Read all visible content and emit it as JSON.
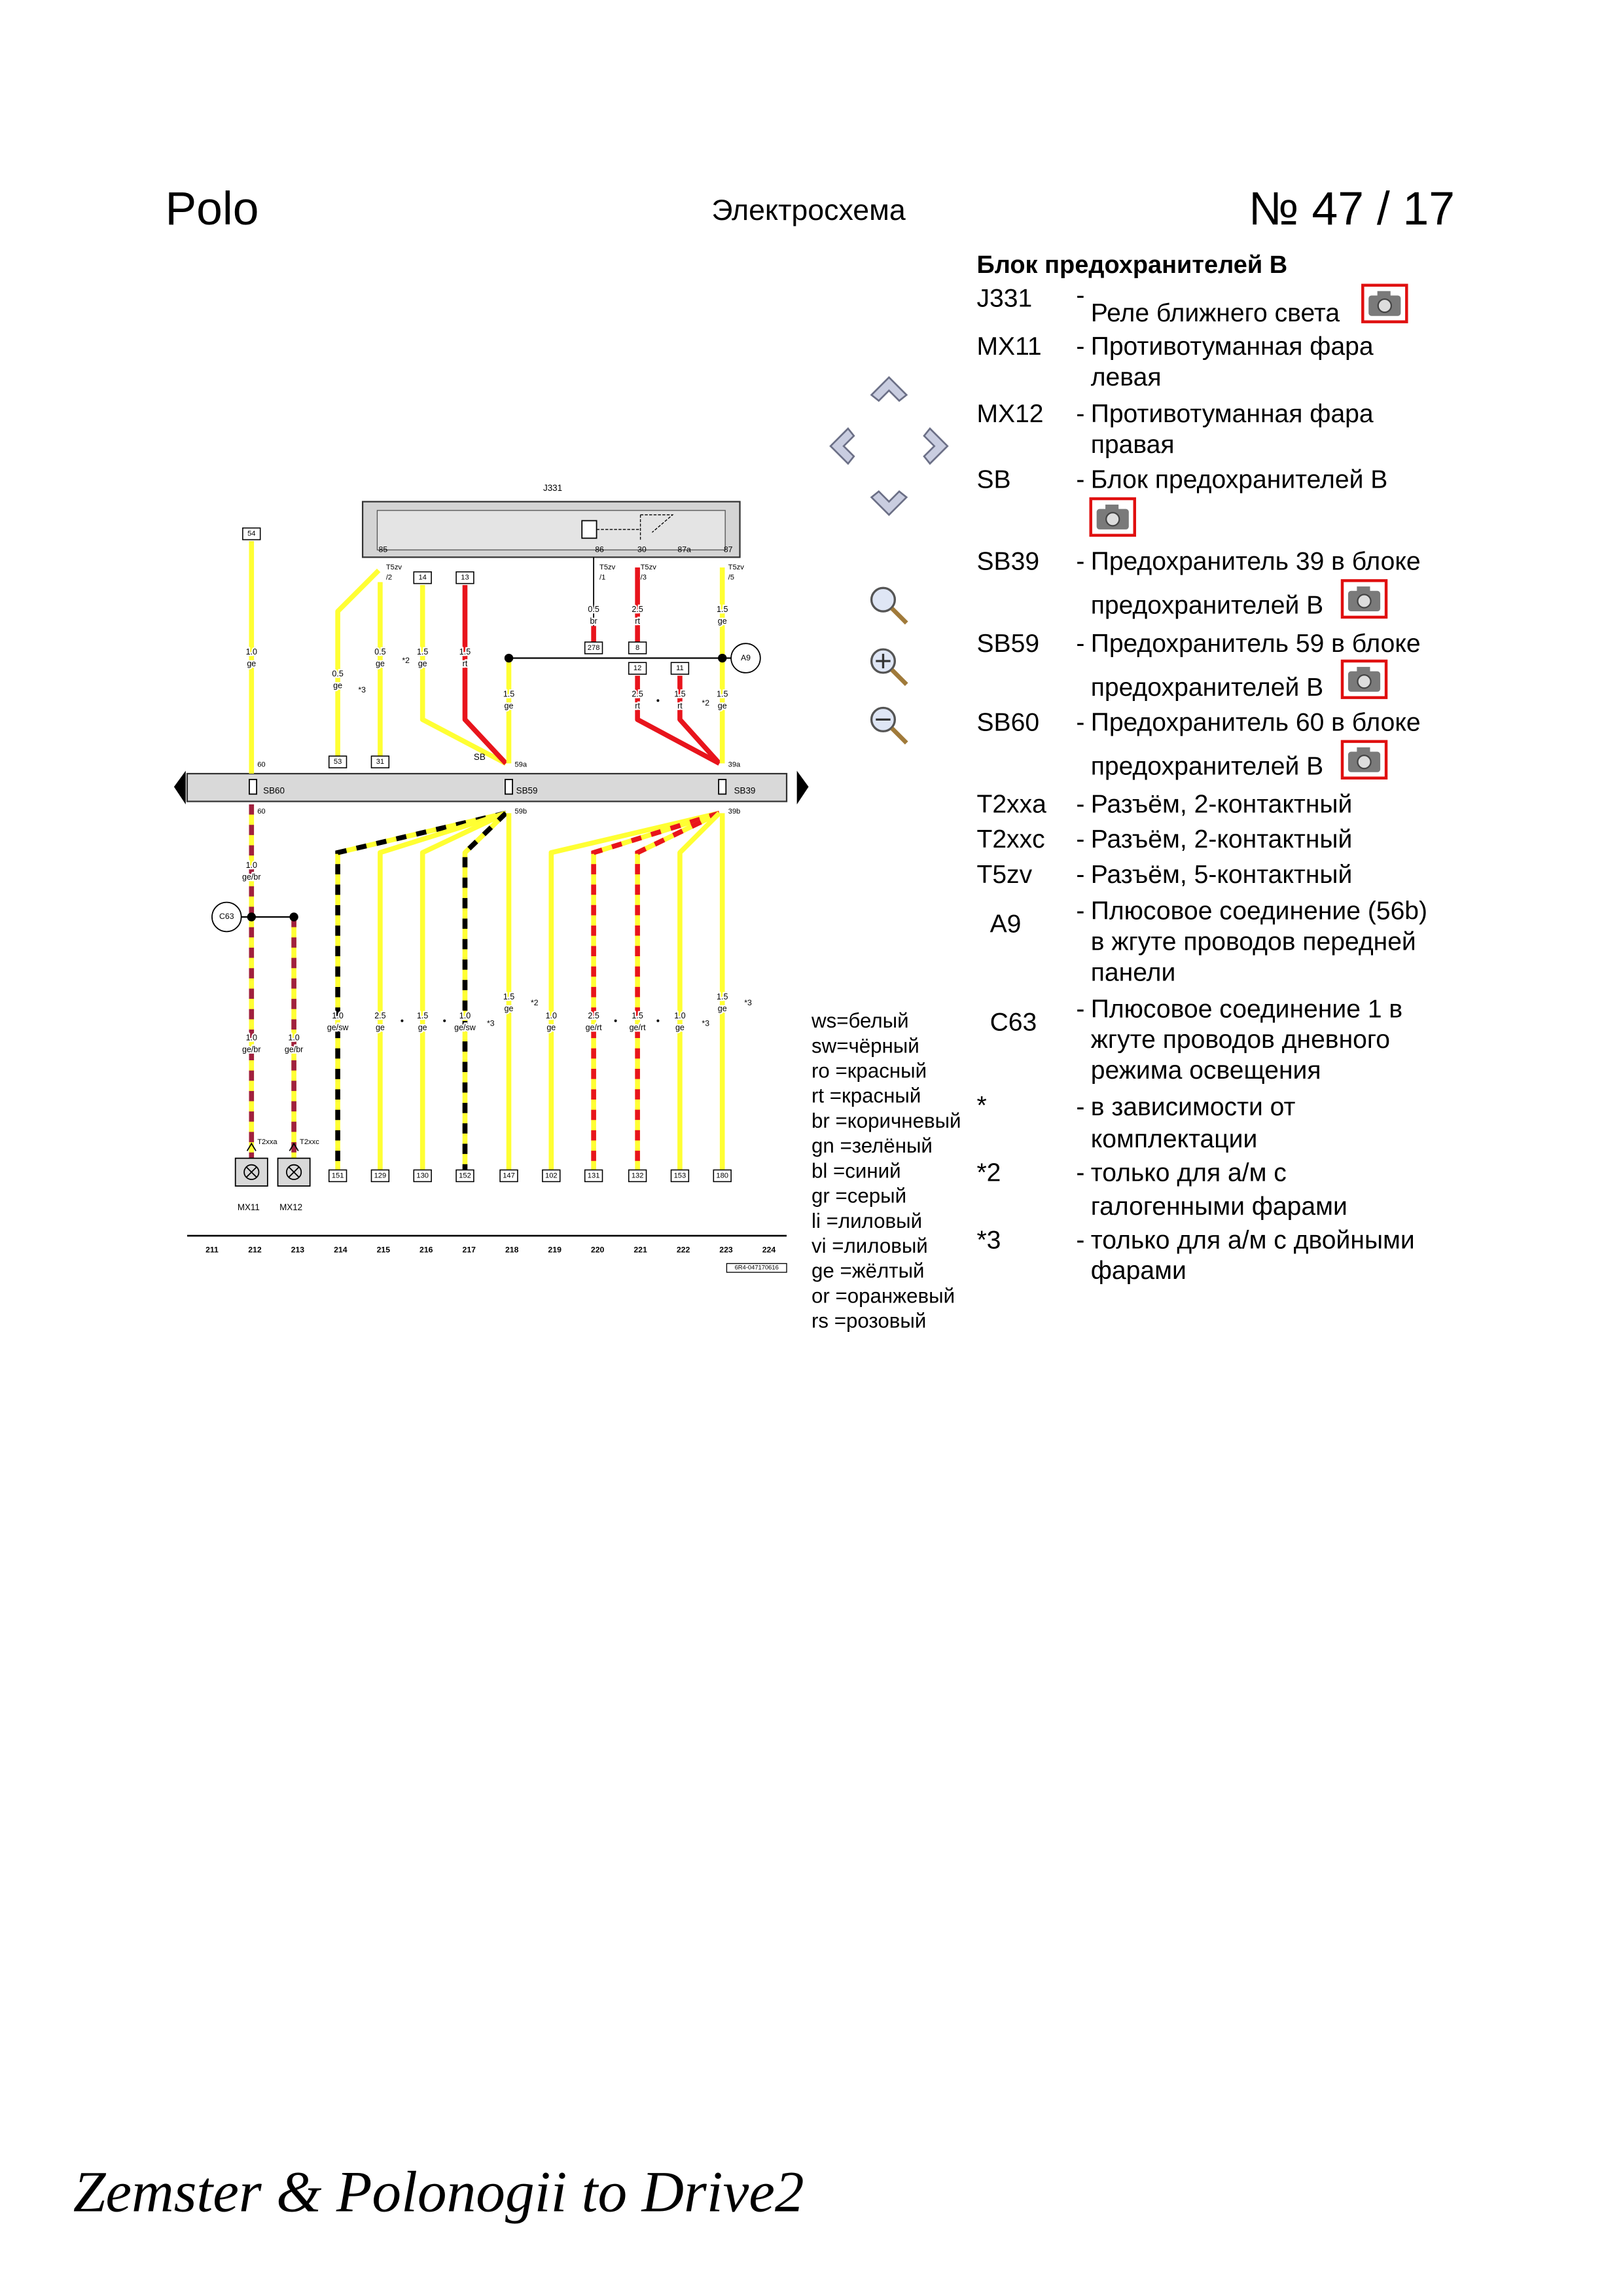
{
  "header": {
    "model": "Polo",
    "title": "Электросхема",
    "number": "№  47 / 17"
  },
  "legend": {
    "title": "Блок предохранителей B",
    "separator": "-",
    "items": [
      {
        "code": "J331",
        "lines": [
          "Реле ближнего света"
        ]
      },
      {
        "code": "MX11",
        "lines": [
          "Противотуманная фара",
          "левая"
        ]
      },
      {
        "code": "MX12",
        "lines": [
          "Противотуманная фара",
          "правая"
        ]
      },
      {
        "code": "SB",
        "lines": [
          "Блок предохранителей B"
        ]
      },
      {
        "code": "SB39",
        "lines": [
          "Предохранитель 39 в блоке",
          "предохранителей B"
        ]
      },
      {
        "code": "SB59",
        "lines": [
          "Предохранитель 59 в блоке",
          "предохранителей B"
        ]
      },
      {
        "code": "SB60",
        "lines": [
          "Предохранитель 60 в блоке",
          "предохранителей B"
        ]
      },
      {
        "code": "T2xxa",
        "lines": [
          "Разъём, 2-контактный"
        ]
      },
      {
        "code": "T2xxc",
        "lines": [
          "Разъём, 2-контактный"
        ]
      },
      {
        "code": "T5zv",
        "lines": [
          "Разъём, 5-контактный"
        ]
      },
      {
        "code": "A9",
        "lines": [
          "Плюсовое соединение (56b)",
          "в жгуте проводов передней",
          "панели"
        ]
      },
      {
        "code": "C63",
        "lines": [
          "Плюсовое соединение 1 в",
          "жгуте проводов дневного",
          "режима освещения"
        ]
      },
      {
        "code": "*",
        "lines": [
          "в зависимости от",
          "комплектации"
        ]
      },
      {
        "code": "*2",
        "lines": [
          "только для а/м с",
          "галогенными фарами"
        ]
      },
      {
        "code": "*3",
        "lines": [
          "только для а/м с двойными",
          "фарами"
        ]
      }
    ]
  },
  "color_codes": [
    "ws=белый",
    "sw=чёрный",
    "ro =красный",
    "rt  =красный",
    "br =коричневый",
    "gn =зелёный",
    "bl  =синий",
    "gr  =серый",
    "li   =лиловый",
    "vi  =лиловый",
    "ge =жёлтый",
    "or =оранжевый",
    "rs =розовый"
  ],
  "diagram": {
    "relay": "J331",
    "relay_pins": [
      "85",
      "86",
      "30",
      "87a",
      "87"
    ],
    "connectors": [
      [
        "T5zv",
        "/2"
      ],
      [
        "T5zv",
        "/1"
      ],
      [
        "T5zv",
        "/3"
      ],
      [
        "T5zv",
        "/5"
      ]
    ],
    "terminals_top": [
      "54",
      "14",
      "13",
      "278",
      "8",
      "12",
      "11",
      "53",
      "31"
    ],
    "fuse_block": "SB",
    "fuses": [
      "SB60",
      "SB59",
      "SB39"
    ],
    "fuse_pins": [
      "60",
      "60",
      "59a",
      "59b",
      "39a",
      "39b"
    ],
    "junctions": [
      "A9",
      "C63"
    ],
    "wire_labels": [
      {
        "size": "1.0",
        "color": "ge"
      },
      {
        "size": "0.5",
        "color": "ge"
      },
      {
        "size": "0.5",
        "color": "ge"
      },
      {
        "size": "1.5",
        "color": "ge"
      },
      {
        "size": "1.5",
        "color": "rt"
      },
      {
        "size": "1.5",
        "color": "ge"
      },
      {
        "size": "0.5",
        "color": "br"
      },
      {
        "size": "2.5",
        "color": "rt"
      },
      {
        "size": "2.5",
        "color": "rt"
      },
      {
        "size": "1.5",
        "color": "rt"
      },
      {
        "size": "1.5",
        "color": "ge"
      },
      {
        "size": "1.5",
        "color": "ge"
      },
      {
        "size": "1.0",
        "color": "ge/br"
      },
      {
        "size": "1.0",
        "color": "ge/br"
      },
      {
        "size": "1.0",
        "color": "ge/br"
      },
      {
        "size": "1.0",
        "color": "ge/sw"
      },
      {
        "size": "2.5",
        "color": "ge"
      },
      {
        "size": "1.5",
        "color": "ge"
      },
      {
        "size": "1.0",
        "color": "ge/sw"
      },
      {
        "size": "1.5",
        "color": "ge"
      },
      {
        "size": "1.0",
        "color": "ge"
      },
      {
        "size": "2.5",
        "color": "ge/rt"
      },
      {
        "size": "1.5",
        "color": "ge/rt"
      },
      {
        "size": "1.0",
        "color": "ge"
      },
      {
        "size": "1.5",
        "color": "ge"
      }
    ],
    "notes": [
      "*3",
      "*2",
      "*2",
      "*3",
      "*2",
      "*3",
      "*3"
    ],
    "connectors_bottom": [
      "T2xxa",
      "T2xxc"
    ],
    "lamps": [
      "MX11",
      "MX12"
    ],
    "terminals_bottom": [
      "151",
      "129",
      "130",
      "152",
      "147",
      "102",
      "131",
      "132",
      "153",
      "180"
    ],
    "columns": [
      211,
      212,
      213,
      214,
      215,
      216,
      217,
      218,
      219,
      220,
      221,
      222,
      223,
      224
    ],
    "doc_id": "6R4-047170616"
  },
  "footer": "Zemster & Polonogii to Drive2"
}
